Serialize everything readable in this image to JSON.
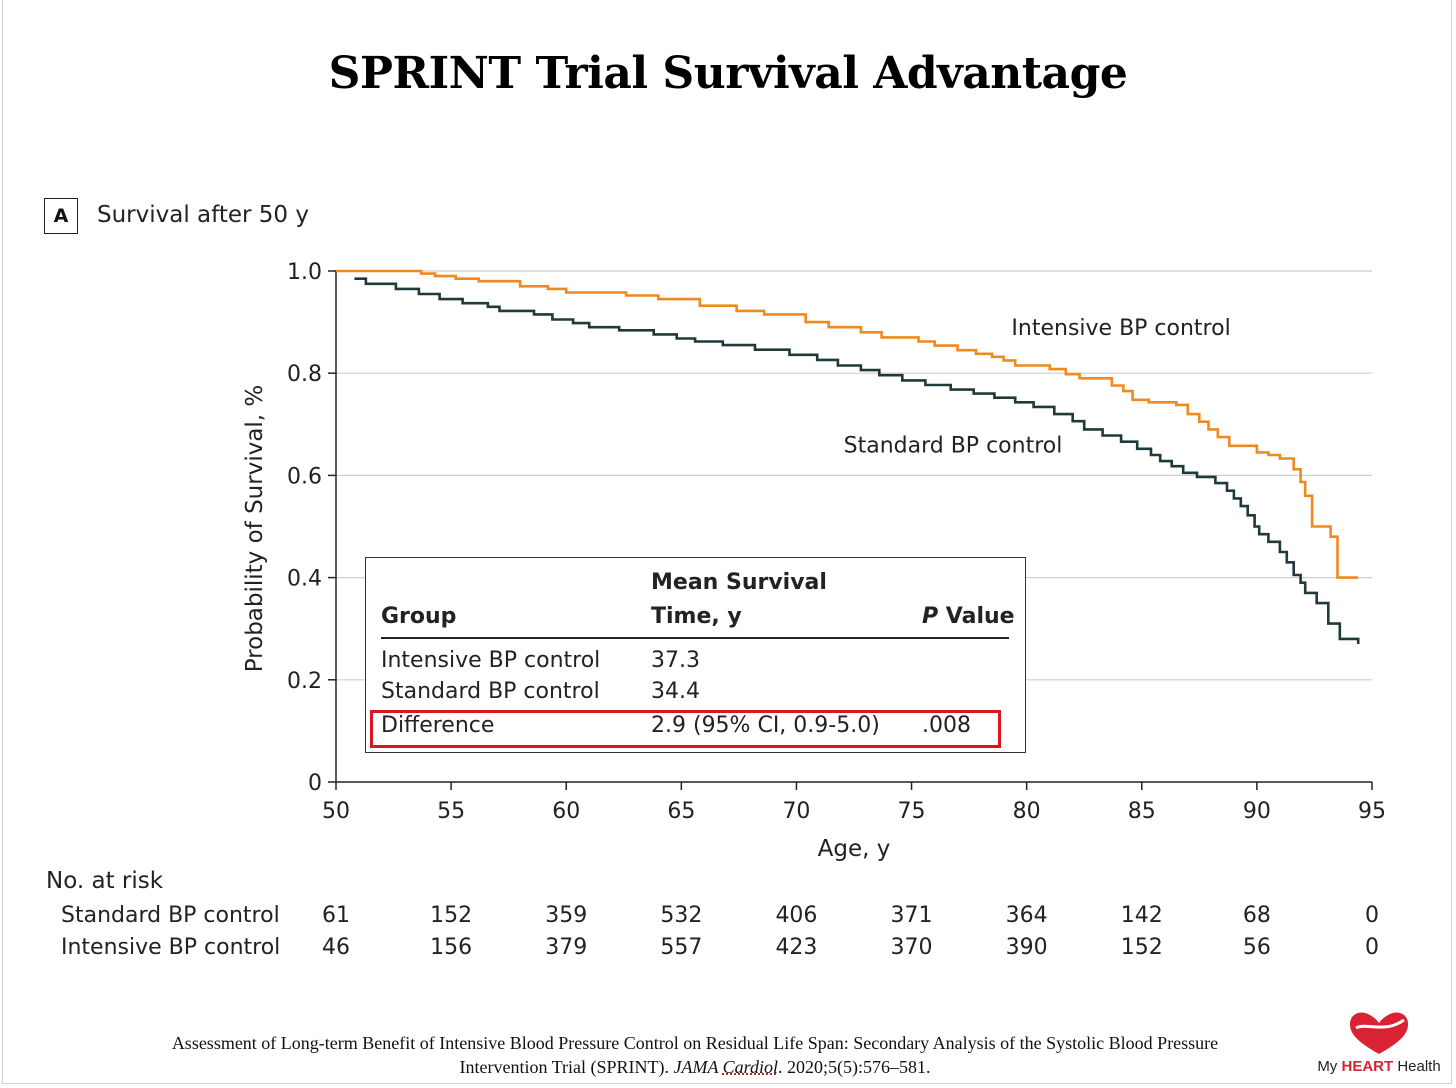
{
  "slide_title": "SPRINT Trial Survival Advantage",
  "panel": {
    "badge": "A",
    "title": "Survival after 50 y"
  },
  "chart_data": {
    "type": "line",
    "title": "Survival after 50 y",
    "xlabel": "Age, y",
    "ylabel": "Probability of Survival, %",
    "xlim": [
      50,
      95
    ],
    "ylim": [
      0,
      1.0
    ],
    "x_ticks": [
      "50",
      "55",
      "60",
      "65",
      "70",
      "75",
      "80",
      "85",
      "90",
      "95"
    ],
    "y_ticks": [
      "0",
      "0.2",
      "0.4",
      "0.6",
      "0.8",
      "1.0"
    ],
    "grid": "horizontal",
    "series": [
      {
        "name": "Intensive BP control",
        "color": "#ee8a1e",
        "step": true,
        "x": [
          50,
          53.7,
          54.3,
          55.2,
          56.2,
          58.0,
          59.2,
          60.0,
          62.6,
          64.0,
          65.8,
          67.4,
          68.6,
          70.4,
          71.4,
          72.8,
          73.7,
          75.3,
          76.0,
          77.0,
          77.8,
          78.5,
          79.0,
          79.5,
          81.0,
          81.7,
          82.3,
          83.7,
          84.2,
          84.6,
          85.3,
          86.5,
          87.0,
          87.5,
          87.9,
          88.3,
          88.8,
          90.0,
          90.5,
          91.0,
          91.6,
          91.9,
          92.1,
          92.4,
          93.2,
          93.5,
          94.4
        ],
        "values": [
          1.0,
          0.995,
          0.99,
          0.985,
          0.98,
          0.97,
          0.965,
          0.958,
          0.952,
          0.945,
          0.932,
          0.922,
          0.915,
          0.9,
          0.89,
          0.88,
          0.87,
          0.862,
          0.854,
          0.845,
          0.838,
          0.832,
          0.825,
          0.815,
          0.808,
          0.798,
          0.79,
          0.776,
          0.765,
          0.748,
          0.743,
          0.738,
          0.72,
          0.705,
          0.69,
          0.675,
          0.658,
          0.645,
          0.64,
          0.633,
          0.612,
          0.587,
          0.56,
          0.5,
          0.48,
          0.4,
          0.4
        ]
      },
      {
        "name": "Standard BP control",
        "color": "#1e3a3a",
        "step": true,
        "x": [
          50.8,
          51.3,
          52.6,
          53.6,
          54.5,
          55.5,
          56.6,
          57.1,
          58.6,
          59.4,
          60.3,
          61.0,
          62.3,
          63.8,
          64.8,
          65.6,
          66.8,
          68.2,
          69.7,
          70.9,
          71.8,
          72.8,
          73.6,
          74.6,
          75.6,
          76.7,
          77.7,
          78.6,
          79.5,
          80.3,
          81.2,
          82.0,
          82.5,
          83.3,
          84.1,
          84.8,
          85.4,
          85.8,
          86.3,
          86.8,
          87.4,
          88.2,
          88.7,
          89.0,
          89.3,
          89.6,
          89.9,
          90.1,
          90.5,
          91.0,
          91.3,
          91.6,
          91.9,
          92.1,
          92.6,
          93.1,
          93.6,
          94.4
        ],
        "values": [
          0.985,
          0.975,
          0.965,
          0.955,
          0.945,
          0.937,
          0.93,
          0.922,
          0.915,
          0.905,
          0.898,
          0.89,
          0.884,
          0.876,
          0.868,
          0.862,
          0.855,
          0.846,
          0.836,
          0.826,
          0.815,
          0.806,
          0.796,
          0.786,
          0.777,
          0.768,
          0.76,
          0.752,
          0.743,
          0.734,
          0.72,
          0.706,
          0.69,
          0.678,
          0.666,
          0.652,
          0.64,
          0.628,
          0.618,
          0.605,
          0.597,
          0.585,
          0.57,
          0.555,
          0.54,
          0.522,
          0.5,
          0.485,
          0.47,
          0.45,
          0.43,
          0.405,
          0.39,
          0.37,
          0.35,
          0.31,
          0.28,
          0.27
        ]
      }
    ],
    "series_annotations": [
      {
        "series": "Intensive BP control",
        "text": "Intensive BP control",
        "x": 84.1,
        "y": 0.875
      },
      {
        "series": "Standard BP control",
        "text": "Standard BP control",
        "x": 76.8,
        "y": 0.645
      }
    ],
    "summary_table": {
      "headers": {
        "group": "Group",
        "mean_line1": "Mean Survival",
        "mean_line2": "Time, y",
        "p_italic": "P",
        "p_rest": " Value"
      },
      "rows": [
        {
          "group": "Intensive BP control",
          "mean": "37.3",
          "p": ""
        },
        {
          "group": "Standard BP control",
          "mean": "34.4",
          "p": ""
        },
        {
          "group": "Difference",
          "mean": "2.9 (95% CI, 0.9-5.0)",
          "p": ".008",
          "highlighted": true
        }
      ]
    },
    "risk_table": {
      "header": "No. at risk",
      "ages": [
        50,
        55,
        60,
        65,
        70,
        75,
        80,
        85,
        90,
        95
      ],
      "rows": [
        {
          "label": "Standard BP control",
          "values": [
            "61",
            "152",
            "359",
            "532",
            "406",
            "371",
            "364",
            "142",
            "68",
            "0"
          ]
        },
        {
          "label": "Intensive BP control",
          "values": [
            "46",
            "156",
            "379",
            "557",
            "423",
            "370",
            "390",
            "152",
            "56",
            "0"
          ]
        }
      ]
    }
  },
  "citation": {
    "line1": "Assessment of Long-term Benefit of Intensive Blood Pressure Control on Residual Life Span: Secondary Analysis of the Systolic Blood Pressure",
    "line2_pre": "Intervention Trial (SPRINT). ",
    "journal_a": "JAMA ",
    "journal_b": "Cardiol",
    "line2_post": ". 2020;5(5):576–581."
  },
  "logo": {
    "text_pre": "My ",
    "text_bold": "HEART",
    "text_post": " Health"
  },
  "colors": {
    "intensive": "#ee8a1e",
    "standard": "#1e3a3a",
    "highlight": "#d7191f",
    "brand": "#d92332"
  }
}
